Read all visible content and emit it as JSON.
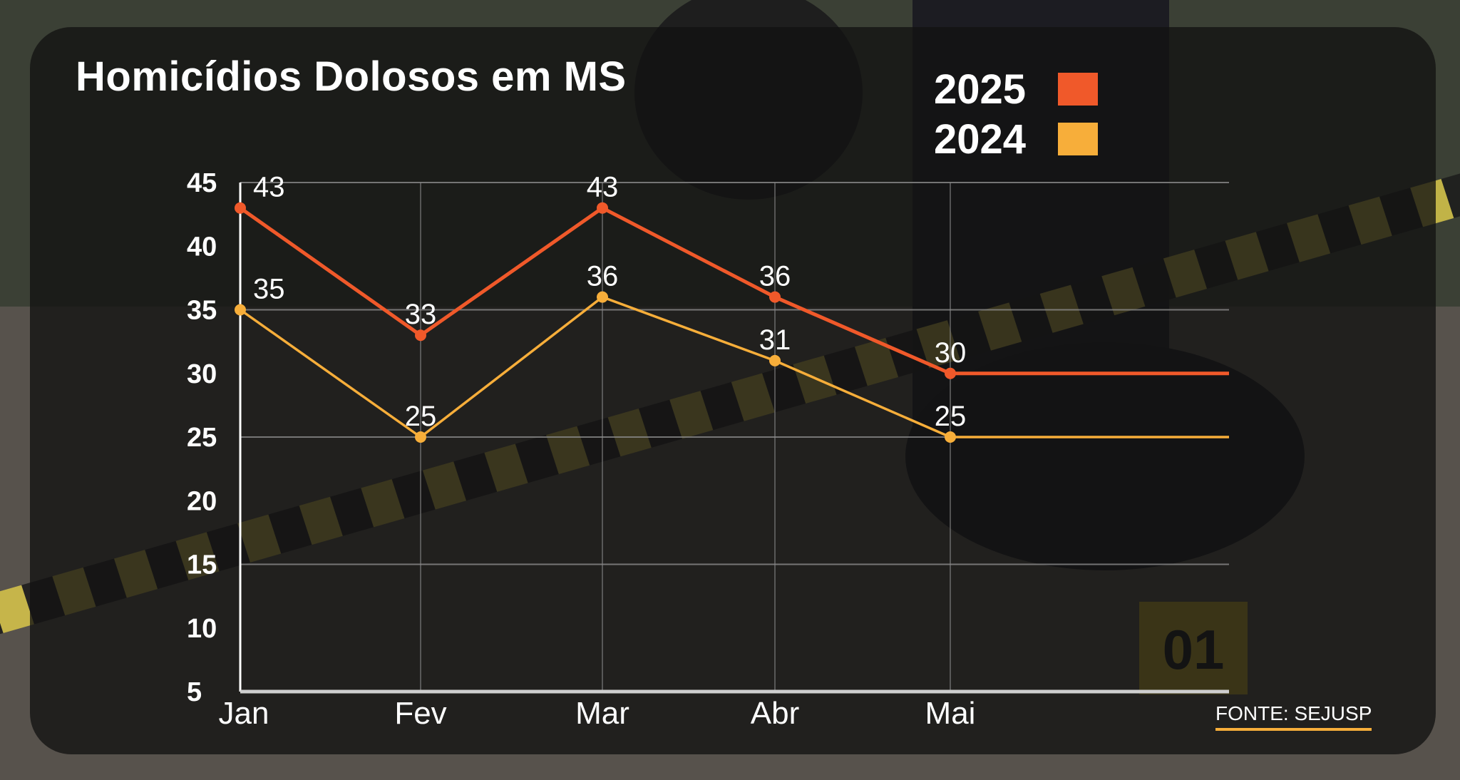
{
  "title": "Homicídios Dolosos em MS",
  "source": "FONTE: SEJUSP",
  "colors": {
    "series_2025": "#f0592a",
    "series_2024": "#f7ae3a",
    "panel": "#121212",
    "grid": "#8c8c8c",
    "axis": "#ffffff"
  },
  "chart_data": {
    "type": "line",
    "title": "Homicídios Dolosos em MS",
    "categories": [
      "Jan",
      "Fev",
      "Mar",
      "Abr",
      "Mai"
    ],
    "y_ticks": [
      "45",
      "40",
      "35",
      "30",
      "25",
      "20",
      "15",
      "10",
      "5"
    ],
    "ylim": [
      5,
      45
    ],
    "legend_position": "top-right",
    "grid": true,
    "series": [
      {
        "name": "2025",
        "values": [
          43,
          33,
          43,
          36,
          30
        ],
        "labels": [
          "43",
          "33",
          "43",
          "36",
          "30"
        ],
        "color": "#f0592a",
        "extends_flat": true
      },
      {
        "name": "2024",
        "values": [
          35,
          25,
          36,
          31,
          25
        ],
        "labels": [
          "35",
          "25",
          "36",
          "31",
          "25"
        ],
        "color": "#f7ae3a",
        "extends_flat": true
      }
    ]
  }
}
